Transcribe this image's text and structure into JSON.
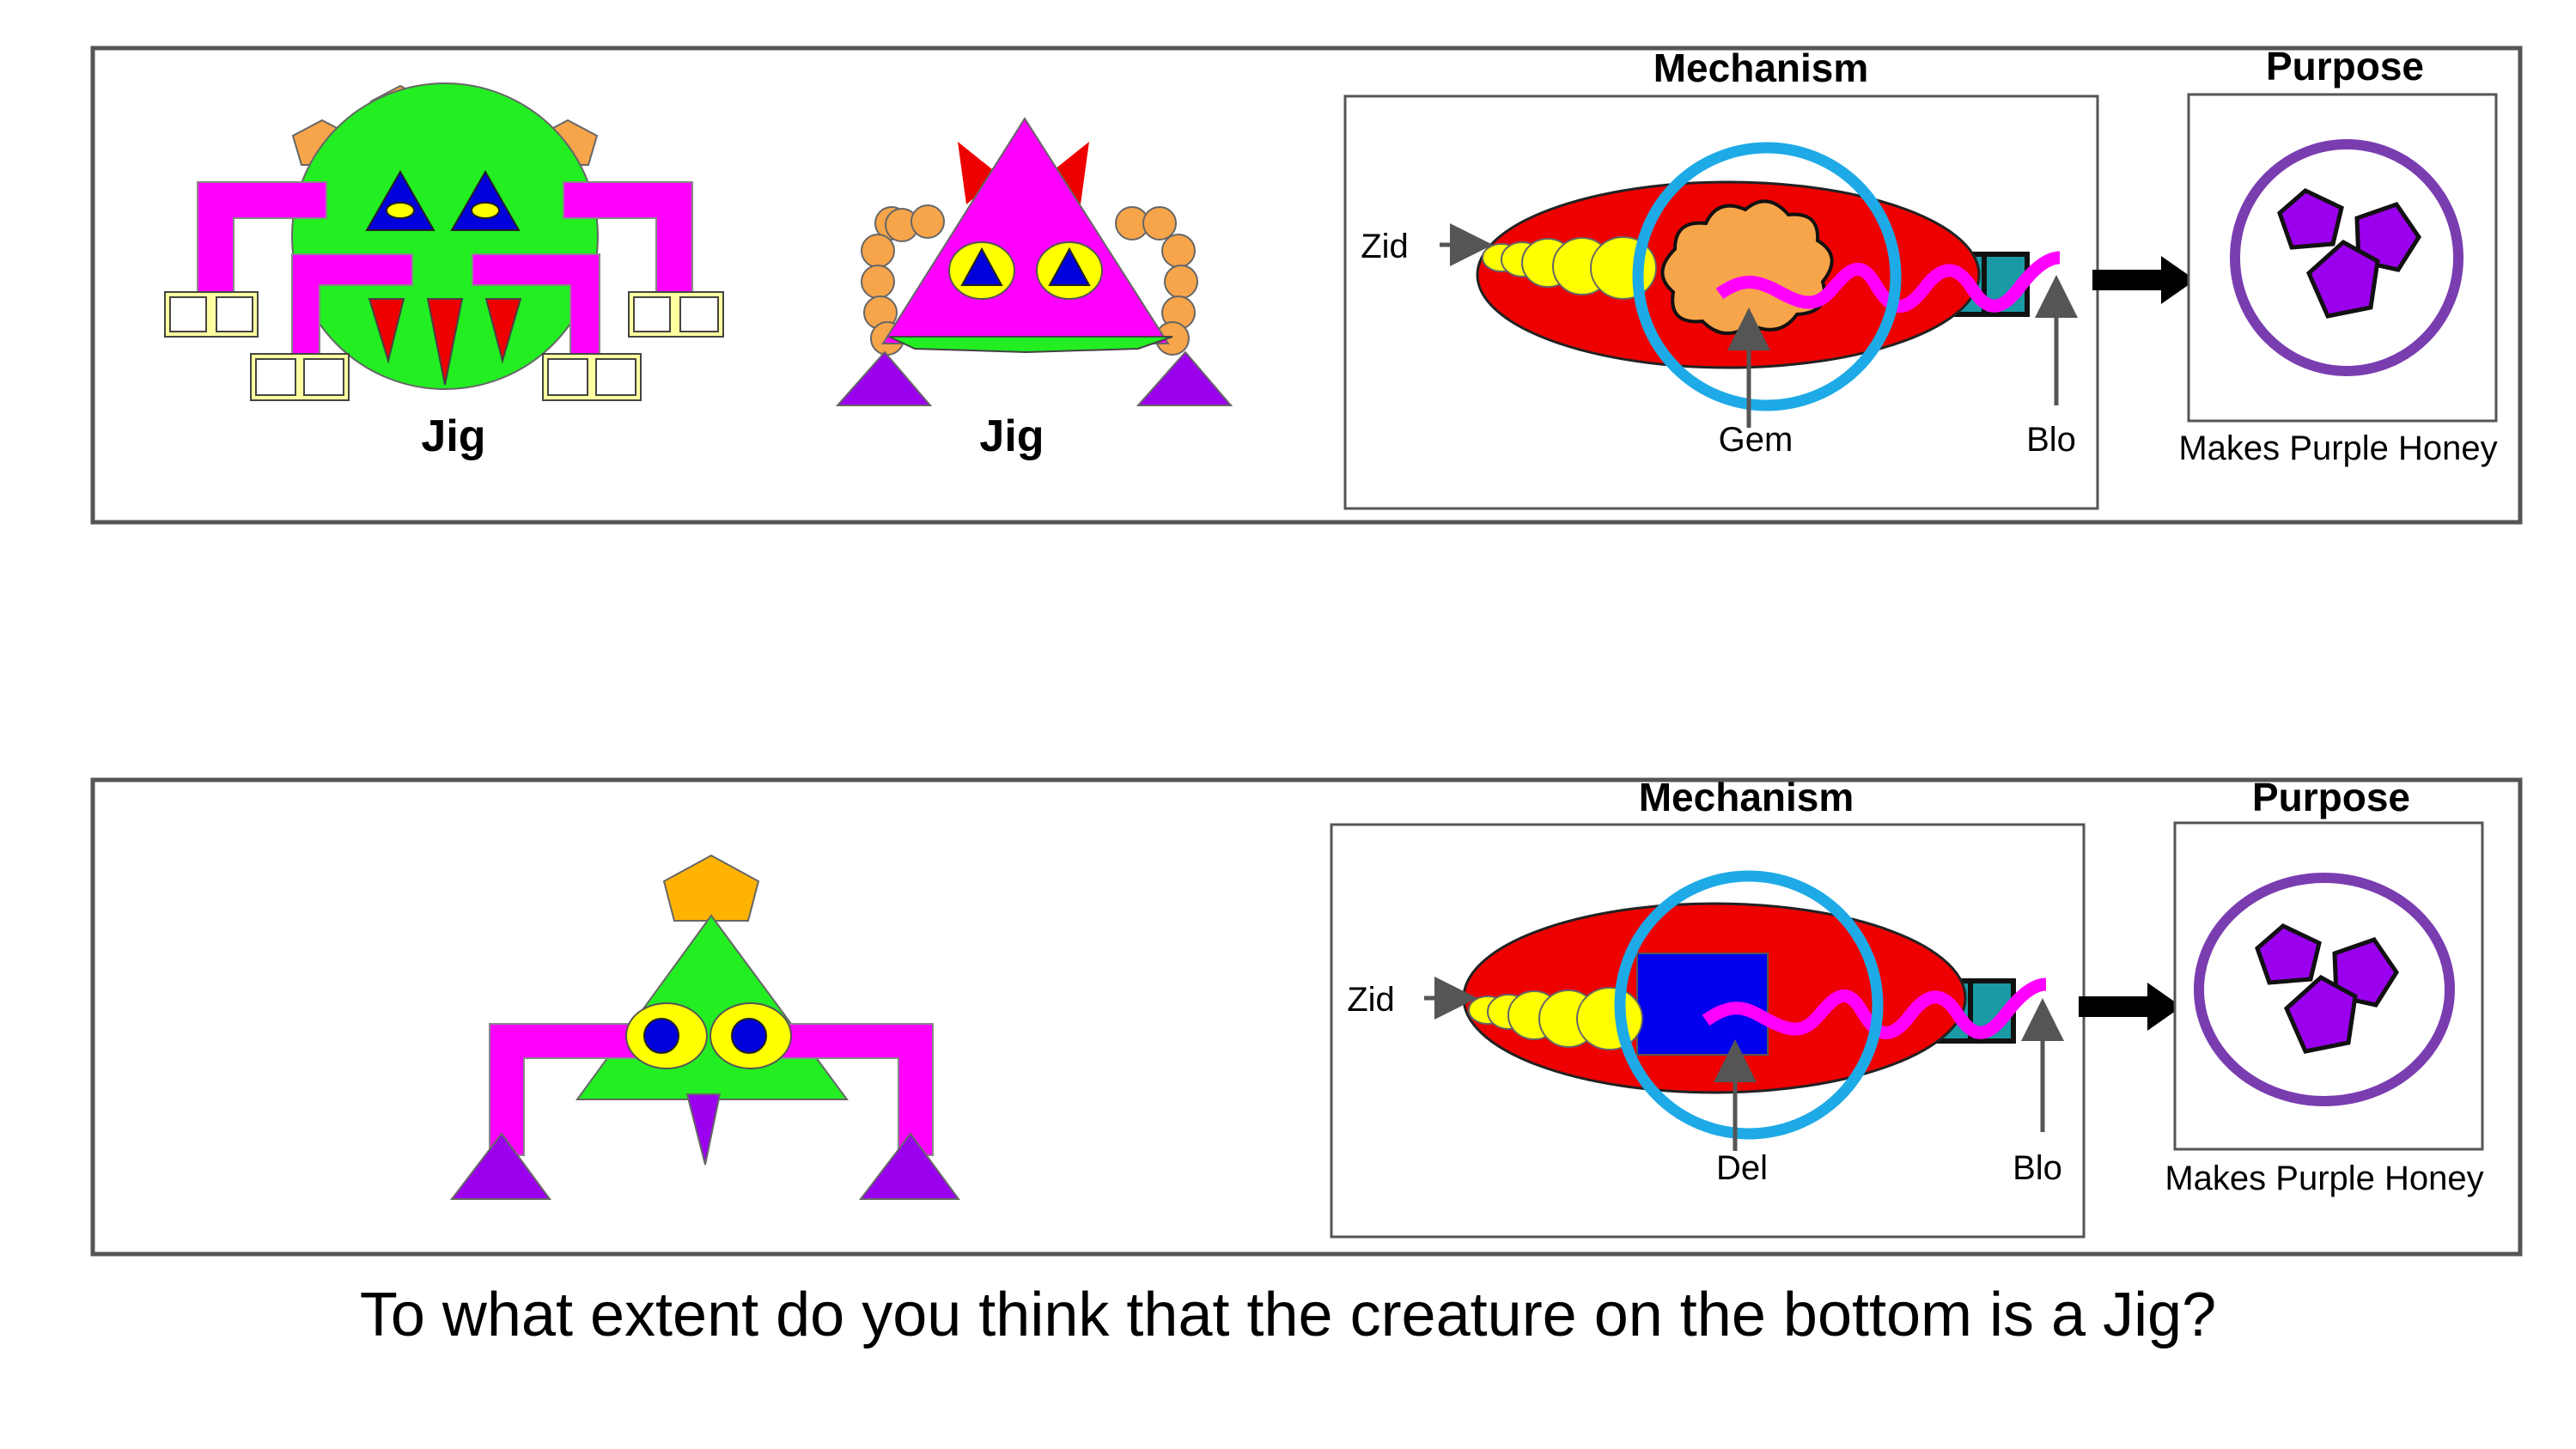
{
  "top_panel": {
    "creature1_label": "Jig",
    "creature2_label": "Jig",
    "mechanism": {
      "title": "Mechanism",
      "zid_label": "Zid",
      "part_label": "Gem",
      "blo_label": "Blo"
    },
    "purpose": {
      "title": "Purpose",
      "caption": "Makes Purple Honey"
    }
  },
  "bottom_panel": {
    "mechanism": {
      "title": "Mechanism",
      "zid_label": "Zid",
      "part_label": "Del",
      "blo_label": "Blo"
    },
    "purpose": {
      "title": "Purpose",
      "caption": "Makes Purple Honey"
    }
  },
  "question": "To what extent do you think that the creature on the bottom is a Jig?",
  "colors": {
    "green": "#22ee22",
    "magenta": "#ff00ff",
    "orange": "#f7a54a",
    "blue": "#0000dd",
    "yellow": "#ffff00",
    "red": "#ee0000",
    "cyan": "#1eaae6",
    "purple": "#9b00ee",
    "ring": "#7a3db0",
    "teal": "#1a9aa5",
    "gold": "#ffb300"
  }
}
